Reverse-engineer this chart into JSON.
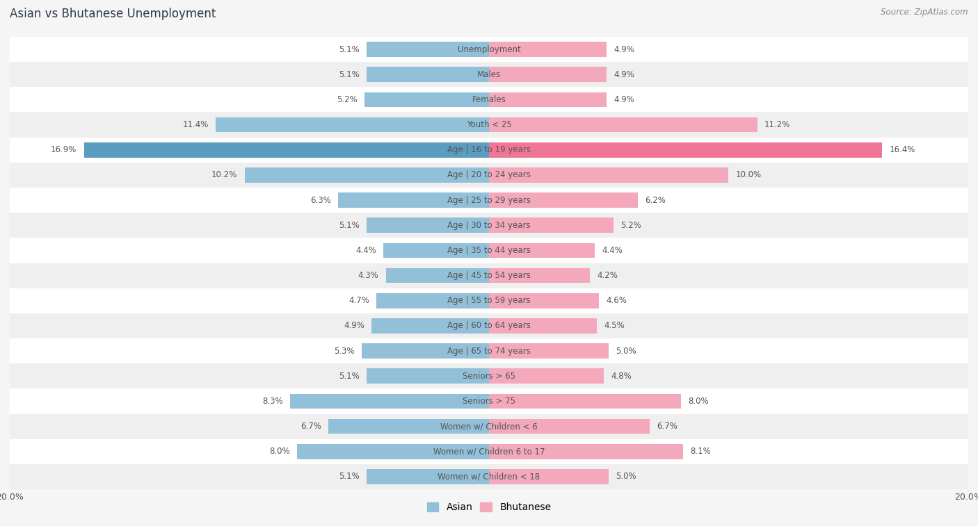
{
  "title": "Asian vs Bhutanese Unemployment",
  "source": "Source: ZipAtlas.com",
  "categories": [
    "Unemployment",
    "Males",
    "Females",
    "Youth < 25",
    "Age | 16 to 19 years",
    "Age | 20 to 24 years",
    "Age | 25 to 29 years",
    "Age | 30 to 34 years",
    "Age | 35 to 44 years",
    "Age | 45 to 54 years",
    "Age | 55 to 59 years",
    "Age | 60 to 64 years",
    "Age | 65 to 74 years",
    "Seniors > 65",
    "Seniors > 75",
    "Women w/ Children < 6",
    "Women w/ Children 6 to 17",
    "Women w/ Children < 18"
  ],
  "asian_values": [
    5.1,
    5.1,
    5.2,
    11.4,
    16.9,
    10.2,
    6.3,
    5.1,
    4.4,
    4.3,
    4.7,
    4.9,
    5.3,
    5.1,
    8.3,
    6.7,
    8.0,
    5.1
  ],
  "bhutanese_values": [
    4.9,
    4.9,
    4.9,
    11.2,
    16.4,
    10.0,
    6.2,
    5.2,
    4.4,
    4.2,
    4.6,
    4.5,
    5.0,
    4.8,
    8.0,
    6.7,
    8.1,
    5.0
  ],
  "asian_color": "#92c0d8",
  "bhutanese_color": "#f4a8bc",
  "asian_color_highlight": "#5b9dbf",
  "bhutanese_color_highlight": "#ef7696",
  "row_colors": [
    "#ffffff",
    "#efefef"
  ],
  "max_val": 20.0,
  "bar_height": 0.6,
  "legend_asian": "Asian",
  "legend_bhutanese": "Bhutanese",
  "title_color": "#2d3a4a",
  "label_color": "#555555",
  "source_color": "#888888",
  "bg_color": "#f5f5f5"
}
